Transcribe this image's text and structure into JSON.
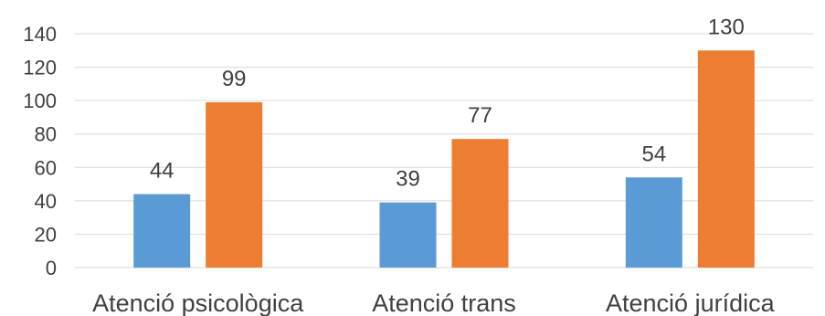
{
  "chart_data": {
    "type": "bar",
    "categories": [
      "Atenció psicològica",
      "Atenció trans",
      "Atenció jurídica"
    ],
    "series": [
      {
        "values": [
          44,
          39,
          54
        ],
        "color": "#5b9bd5"
      },
      {
        "values": [
          99,
          77,
          130
        ],
        "color": "#ed7d31"
      }
    ],
    "ylim": [
      0,
      140
    ],
    "yticks": [
      0,
      20,
      40,
      60,
      80,
      100,
      120,
      140
    ],
    "grid": true,
    "legend": "none",
    "data_labels": true
  }
}
